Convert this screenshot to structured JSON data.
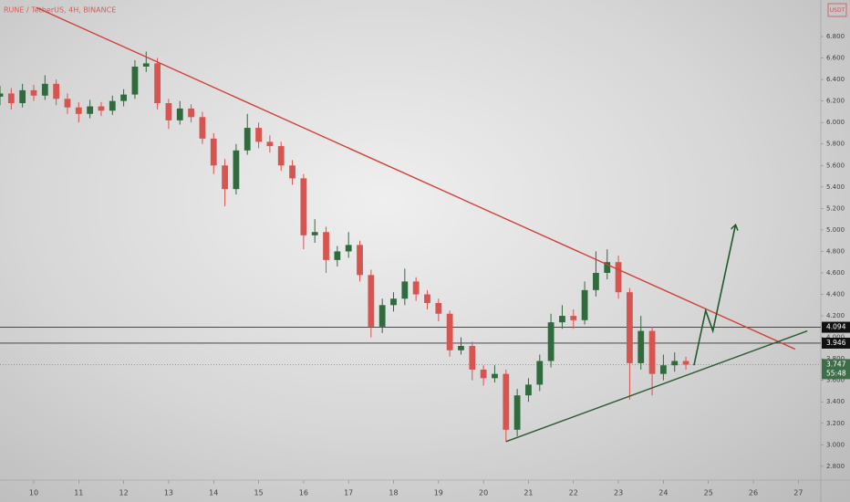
{
  "chart_data": {
    "type": "candlestick",
    "title": "RUNE / TetherUS, 4H, BINANCE",
    "currency": "USDT",
    "x": [
      9.25,
      9.5,
      9.75,
      10,
      10.25,
      10.5,
      10.75,
      11,
      11.25,
      11.5,
      11.75,
      12,
      12.25,
      12.5,
      12.75,
      13,
      13.25,
      13.5,
      13.75,
      14,
      14.25,
      14.5,
      14.75,
      15,
      15.25,
      15.5,
      15.75,
      16,
      16.25,
      16.5,
      16.75,
      17,
      17.25,
      17.5,
      17.75,
      18,
      18.25,
      18.5,
      18.75,
      19,
      19.25,
      19.5,
      19.75,
      20,
      20.25,
      20.5,
      20.75,
      21,
      21.25,
      21.5,
      21.75,
      22,
      22.25,
      22.5,
      22.75,
      23,
      23.25,
      23.5,
      23.75,
      24,
      24.25,
      24.5
    ],
    "open": [
      6.24,
      6.27,
      6.18,
      6.3,
      6.25,
      6.36,
      6.22,
      6.14,
      6.08,
      6.15,
      6.11,
      6.2,
      6.26,
      6.52,
      6.55,
      6.18,
      6.02,
      6.13,
      6.05,
      5.85,
      5.6,
      5.38,
      5.74,
      5.95,
      5.82,
      5.78,
      5.6,
      5.48,
      4.95,
      4.98,
      4.72,
      4.8,
      4.86,
      4.58,
      4.1,
      4.3,
      4.36,
      4.52,
      4.4,
      4.32,
      4.22,
      3.88,
      3.92,
      3.7,
      3.62,
      3.66,
      3.14,
      3.46,
      3.56,
      3.78,
      4.14,
      4.2,
      4.16,
      4.44,
      4.6,
      4.7,
      4.42,
      3.76,
      4.06,
      3.66,
      3.74,
      3.78
    ],
    "high": [
      6.34,
      6.32,
      6.36,
      6.35,
      6.44,
      6.4,
      6.27,
      6.19,
      6.21,
      6.19,
      6.25,
      6.31,
      6.58,
      6.66,
      6.6,
      6.22,
      6.2,
      6.17,
      6.1,
      5.9,
      5.66,
      5.8,
      6.08,
      6.0,
      5.88,
      5.82,
      5.65,
      5.52,
      5.1,
      5.03,
      4.85,
      4.98,
      4.9,
      4.63,
      4.36,
      4.42,
      4.64,
      4.56,
      4.44,
      4.36,
      4.25,
      4.0,
      3.96,
      3.74,
      3.74,
      3.7,
      3.52,
      3.62,
      3.84,
      4.22,
      4.3,
      4.26,
      4.52,
      4.8,
      4.82,
      4.76,
      4.46,
      4.2,
      4.1,
      3.84,
      3.86,
      3.82
    ],
    "low": [
      6.16,
      6.12,
      6.14,
      6.2,
      6.21,
      6.16,
      6.08,
      6.0,
      6.04,
      6.06,
      6.07,
      6.15,
      6.22,
      6.47,
      6.12,
      5.94,
      5.98,
      6.0,
      5.8,
      5.52,
      5.22,
      5.33,
      5.7,
      5.76,
      5.72,
      5.55,
      5.42,
      4.82,
      4.88,
      4.6,
      4.66,
      4.74,
      4.52,
      4.0,
      4.04,
      4.24,
      4.3,
      4.34,
      4.26,
      4.15,
      3.82,
      3.84,
      3.6,
      3.55,
      3.58,
      3.03,
      3.08,
      3.4,
      3.5,
      3.72,
      4.08,
      4.08,
      4.12,
      4.38,
      4.54,
      4.36,
      3.42,
      3.7,
      3.46,
      3.6,
      3.68,
      3.7
    ],
    "close": [
      6.27,
      6.18,
      6.3,
      6.25,
      6.36,
      6.22,
      6.14,
      6.08,
      6.15,
      6.11,
      6.2,
      6.26,
      6.52,
      6.55,
      6.18,
      6.02,
      6.13,
      6.05,
      5.85,
      5.6,
      5.38,
      5.74,
      5.95,
      5.82,
      5.78,
      5.6,
      5.48,
      4.95,
      4.98,
      4.72,
      4.8,
      4.86,
      4.58,
      4.1,
      4.3,
      4.36,
      4.52,
      4.4,
      4.32,
      4.22,
      3.88,
      3.92,
      3.7,
      3.62,
      3.66,
      3.14,
      3.46,
      3.56,
      3.78,
      4.14,
      4.2,
      4.16,
      4.44,
      4.6,
      4.7,
      4.42,
      3.76,
      4.06,
      3.66,
      3.74,
      3.78,
      3.747
    ],
    "up_color": "#2f6b3c",
    "down_color": "#d9534f",
    "xlim": [
      9.25,
      27.5
    ],
    "xticks": [
      10,
      11,
      12,
      13,
      14,
      15,
      16,
      17,
      18,
      19,
      20,
      21,
      22,
      23,
      24,
      25,
      26,
      27
    ],
    "ylim": [
      2.68,
      7.14
    ],
    "yticks": [
      {
        "value": 2.8,
        "label": "2.800"
      },
      {
        "value": 3.0,
        "label": "3.000"
      },
      {
        "value": 3.2,
        "label": "3.200"
      },
      {
        "value": 3.4,
        "label": "3.400"
      },
      {
        "value": 3.6,
        "label": "3.600"
      },
      {
        "value": 3.8,
        "label": "3.800"
      },
      {
        "value": 4.0,
        "label": "4.000"
      },
      {
        "value": 4.2,
        "label": "4.200"
      },
      {
        "value": 4.4,
        "label": "4.400"
      },
      {
        "value": 4.6,
        "label": "4.600"
      },
      {
        "value": 4.8,
        "label": "4.800"
      },
      {
        "value": 5.0,
        "label": "5.000"
      },
      {
        "value": 5.2,
        "label": "5.200"
      },
      {
        "value": 5.4,
        "label": "5.400"
      },
      {
        "value": 5.6,
        "label": "5.600"
      },
      {
        "value": 5.8,
        "label": "5.800"
      },
      {
        "value": 6.0,
        "label": "6.000"
      },
      {
        "value": 6.2,
        "label": "6.200"
      },
      {
        "value": 6.4,
        "label": "6.400"
      },
      {
        "value": 6.6,
        "label": "6.600"
      },
      {
        "value": 6.8,
        "label": "6.800"
      }
    ],
    "trendlines": [
      {
        "color": "#d0413c",
        "x": [
          10.06,
          26.93
        ],
        "y": [
          7.07,
          3.89
        ]
      },
      {
        "color": "#2e5a30",
        "x": [
          20.5,
          27.2
        ],
        "y": [
          3.03,
          4.06
        ]
      }
    ],
    "projection": {
      "color": "#1f5a2a",
      "x": [
        24.68,
        24.94,
        25.1,
        25.6
      ],
      "y": [
        3.74,
        4.25,
        4.06,
        5.04
      ]
    },
    "levels": [
      {
        "value": 4.094,
        "label": "4.094"
      },
      {
        "value": 3.946,
        "label": "3.946"
      }
    ],
    "last_price": {
      "value": 3.747,
      "label": "3.747"
    },
    "countdown": "55:48"
  }
}
